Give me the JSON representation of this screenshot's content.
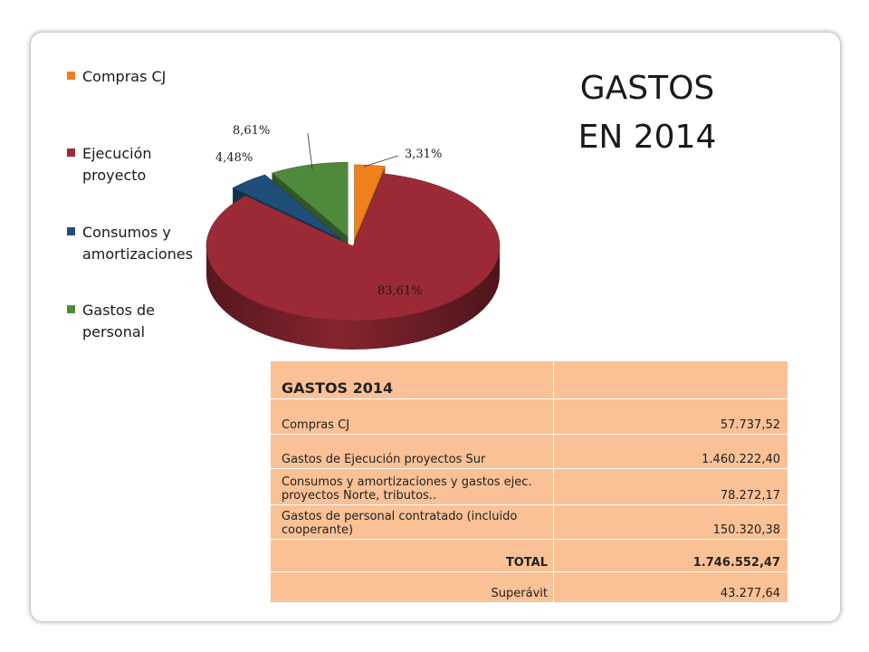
{
  "title": {
    "line1": "GASTOS",
    "line2": "EN 2014"
  },
  "chart_data": {
    "type": "pie",
    "title": "GASTOS EN 2014",
    "categories": [
      "Compras CJ",
      "Ejecución proyecto",
      "Consumos y amortizaciones",
      "Gastos de personal"
    ],
    "values": [
      3.31,
      83.61,
      4.48,
      8.61
    ],
    "labels": [
      "3,31%",
      "83,61%",
      "4,48%",
      "8,61%"
    ],
    "colors": [
      "#f0801e",
      "#9c2a36",
      "#1f4e78",
      "#4f8a3c"
    ],
    "legend_position": "left",
    "style": "3d-exploded"
  },
  "legend": [
    {
      "label": "Compras CJ",
      "color": "#f0801e"
    },
    {
      "label": "Ejecución proyecto",
      "color": "#9c2a36"
    },
    {
      "label": "Consumos y amortizaciones",
      "color": "#1f4e78"
    },
    {
      "label": "Gastos de personal",
      "color": "#4f8a3c"
    }
  ],
  "table": {
    "header": "GASTOS 2014",
    "rows": [
      {
        "label": "Compras CJ",
        "value": "57.737,52"
      },
      {
        "label": "Gastos de Ejecución proyectos Sur",
        "value": "1.460.222,40"
      },
      {
        "label": "Consumos y amortizaciones y gastos ejec. proyectos Norte, tributos..",
        "value": "78.272,17"
      },
      {
        "label": "Gastos de personal contratado (incluido cooperante)",
        "value": "150.320,38"
      }
    ],
    "total_label": "TOTAL",
    "total_value": "1.746.552,47",
    "surplus_label": "Superávit",
    "surplus_value": "43.277,64"
  }
}
